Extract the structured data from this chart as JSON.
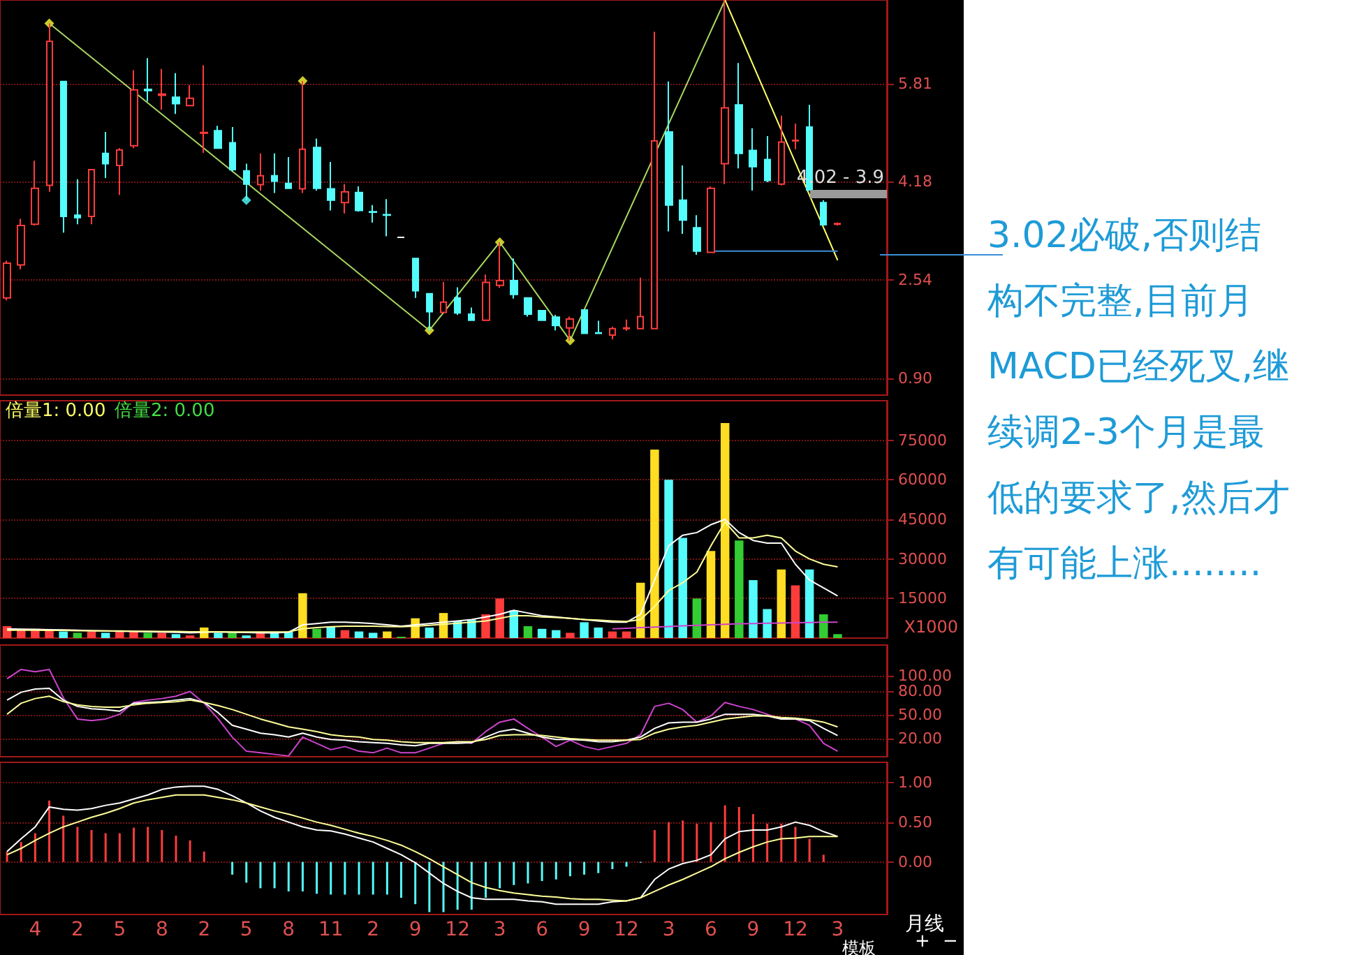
{
  "chart_data": [
    {
      "type": "candlestick",
      "categories": [
        null,
        null,
        "4",
        null,
        null,
        "2",
        null,
        null,
        "5",
        null,
        null,
        "8",
        null,
        null,
        "2",
        null,
        null,
        "5",
        null,
        null,
        "8",
        null,
        null,
        "11",
        null,
        null,
        "2",
        null,
        null,
        "9",
        null,
        null,
        "12",
        null,
        null,
        "3",
        null,
        null,
        "6",
        null,
        null,
        "9",
        null,
        null,
        "12",
        null,
        null,
        "3",
        null,
        null,
        "6",
        null,
        null,
        "9",
        null,
        null,
        "12",
        null,
        null,
        "3"
      ],
      "ohlc": [
        [
          2.24,
          2.86,
          2.2,
          2.82
        ],
        [
          2.79,
          3.56,
          2.72,
          3.45
        ],
        [
          3.47,
          4.53,
          3.45,
          4.07
        ],
        [
          4.12,
          6.82,
          4.01,
          6.52
        ],
        [
          5.85,
          5.85,
          3.33,
          3.6
        ],
        [
          3.62,
          4.22,
          3.47,
          3.58
        ],
        [
          3.6,
          4.38,
          3.47,
          4.38
        ],
        [
          4.65,
          5.01,
          4.24,
          4.48
        ],
        [
          4.45,
          4.74,
          3.96,
          4.71
        ],
        [
          4.78,
          6.04,
          4.74,
          5.71
        ],
        [
          5.72,
          6.24,
          5.52,
          5.7
        ],
        [
          5.62,
          6.06,
          5.38,
          5.64
        ],
        [
          5.59,
          5.99,
          5.31,
          5.48
        ],
        [
          5.45,
          5.79,
          5.45,
          5.57
        ],
        [
          4.99,
          6.12,
          4.66,
          5.0
        ],
        [
          5.03,
          5.11,
          4.74,
          4.74
        ],
        [
          4.83,
          5.09,
          4.35,
          4.38
        ],
        [
          4.36,
          4.48,
          3.87,
          4.14
        ],
        [
          4.13,
          4.65,
          4.03,
          4.28
        ],
        [
          4.28,
          4.65,
          3.99,
          4.19
        ],
        [
          4.15,
          4.59,
          4.06,
          4.07
        ],
        [
          4.06,
          5.86,
          3.99,
          4.72
        ],
        [
          4.75,
          4.9,
          4.03,
          4.07
        ],
        [
          4.06,
          4.51,
          3.7,
          3.87
        ],
        [
          3.83,
          4.14,
          3.65,
          4.01
        ],
        [
          4.0,
          4.1,
          3.68,
          3.7
        ],
        [
          3.68,
          3.79,
          3.5,
          3.67
        ],
        [
          3.63,
          3.89,
          3.27,
          3.62
        ],
        [
          3.25,
          3.25,
          3.25,
          3.25
        ],
        [
          2.9,
          2.9,
          2.24,
          2.36
        ],
        [
          2.31,
          2.31,
          1.7,
          2.01
        ],
        [
          2.0,
          2.51,
          2.0,
          2.17
        ],
        [
          2.24,
          2.42,
          1.96,
          1.99
        ],
        [
          1.97,
          2.08,
          1.86,
          1.87
        ],
        [
          1.87,
          2.63,
          1.87,
          2.5
        ],
        [
          2.45,
          3.17,
          2.41,
          2.53
        ],
        [
          2.53,
          2.9,
          2.23,
          2.3
        ],
        [
          2.24,
          2.24,
          1.93,
          1.97
        ],
        [
          2.03,
          2.03,
          1.86,
          1.87
        ],
        [
          1.92,
          1.96,
          1.7,
          1.78
        ],
        [
          1.74,
          1.93,
          1.53,
          1.89
        ],
        [
          2.04,
          2.04,
          1.65,
          1.65
        ],
        [
          1.66,
          1.86,
          1.65,
          1.65
        ],
        [
          1.62,
          1.76,
          1.55,
          1.73
        ],
        [
          1.73,
          1.88,
          1.69,
          1.74
        ],
        [
          1.73,
          2.58,
          1.73,
          1.93
        ],
        [
          1.73,
          6.68,
          1.73,
          4.86
        ],
        [
          5.01,
          5.85,
          3.35,
          3.79
        ],
        [
          3.87,
          4.45,
          3.31,
          3.54
        ],
        [
          3.41,
          3.62,
          2.96,
          3.02
        ],
        [
          3.0,
          4.1,
          3.0,
          4.07
        ],
        [
          4.48,
          7.21,
          4.14,
          5.41
        ],
        [
          5.46,
          6.16,
          4.4,
          4.65
        ],
        [
          4.7,
          5.07,
          4.03,
          4.43
        ],
        [
          4.55,
          4.94,
          4.17,
          4.2
        ],
        [
          4.14,
          5.28,
          4.12,
          4.84
        ],
        [
          4.86,
          5.15,
          4.72,
          4.87
        ],
        [
          5.09,
          5.46,
          4.04,
          4.04
        ],
        [
          3.83,
          3.87,
          3.46,
          3.46
        ],
        [
          3.47,
          3.5,
          3.45,
          3.48
        ]
      ],
      "colors": [
        "#ff3c3c",
        "#ff3c3c",
        "#ff3c3c",
        "#ff3c3c",
        "#54fcfc",
        "#54fcfc",
        "#ff3c3c",
        "#54fcfc",
        "#ff3c3c",
        "#ff3c3c",
        "#54fcfc",
        "#ff3c3c",
        "#54fcfc",
        "#ff3c3c",
        "#ff3c3c",
        "#54fcfc",
        "#54fcfc",
        "#54fcfc",
        "#ff3c3c",
        "#54fcfc",
        "#54fcfc",
        "#ff3c3c",
        "#54fcfc",
        "#54fcfc",
        "#ff3c3c",
        "#54fcfc",
        "#54fcfc",
        "#54fcfc",
        "#ffffff",
        "#54fcfc",
        "#54fcfc",
        "#ff3c3c",
        "#54fcfc",
        "#54fcfc",
        "#ff3c3c",
        "#ff3c3c",
        "#54fcfc",
        "#54fcfc",
        "#54fcfc",
        "#54fcfc",
        "#ff3c3c",
        "#54fcfc",
        "#54fcfc",
        "#ff3c3c",
        "#ff3c3c",
        "#ff3c3c",
        "#ff3c3c",
        "#54fcfc",
        "#54fcfc",
        "#54fcfc",
        "#ff3c3c",
        "#ff3c3c",
        "#54fcfc",
        "#54fcfc",
        "#54fcfc",
        "#ff3c3c",
        "#ff3c3c",
        "#54fcfc",
        "#54fcfc",
        "#ff3c3c"
      ],
      "series": [
        {
          "type": "line",
          "color": "#a8d860",
          "values": [
            null,
            null,
            null,
            6.82,
            null,
            null,
            null,
            null,
            null,
            null,
            null,
            null,
            null,
            null,
            null,
            null,
            null,
            null,
            null,
            null,
            null,
            null,
            null,
            null,
            null,
            null,
            null,
            null,
            null,
            null,
            1.7,
            null,
            null,
            null,
            null,
            3.17,
            null,
            null,
            null,
            null,
            1.53,
            null,
            null,
            null,
            null,
            null,
            null,
            null,
            null,
            null,
            null,
            7.21,
            null,
            null,
            null,
            null,
            null,
            null,
            null,
            null
          ]
        },
        {
          "type": "line",
          "color": "#ffff66",
          "values": [
            null,
            null,
            null,
            null,
            null,
            null,
            null,
            null,
            null,
            null,
            null,
            null,
            null,
            null,
            null,
            null,
            null,
            null,
            null,
            null,
            null,
            null,
            null,
            null,
            null,
            null,
            null,
            null,
            null,
            null,
            null,
            null,
            null,
            null,
            null,
            null,
            null,
            null,
            null,
            null,
            null,
            null,
            null,
            null,
            null,
            null,
            null,
            null,
            null,
            null,
            null,
            7.21,
            null,
            null,
            null,
            null,
            null,
            null,
            null,
            2.87
          ]
        },
        {
          "type": "line",
          "color": "#3d8fd9",
          "values": [
            null,
            null,
            null,
            null,
            null,
            null,
            null,
            null,
            null,
            null,
            null,
            null,
            null,
            null,
            null,
            null,
            null,
            null,
            null,
            null,
            null,
            null,
            null,
            null,
            null,
            null,
            null,
            null,
            null,
            null,
            null,
            null,
            null,
            null,
            null,
            null,
            null,
            null,
            null,
            null,
            null,
            null,
            null,
            null,
            null,
            null,
            null,
            null,
            null,
            null,
            3.02,
            3.02,
            3.02,
            3.02,
            3.02,
            3.02,
            3.02,
            3.02,
            3.02,
            3.02
          ]
        },
        {
          "type": "scatter",
          "color": "#ffff33",
          "marker": "diamond",
          "values": [
            null,
            null,
            null,
            6.82,
            null,
            null,
            null,
            null,
            null,
            null,
            null,
            null,
            null,
            null,
            null,
            null,
            null,
            null,
            null,
            null,
            null,
            5.86,
            null,
            null,
            null,
            null,
            null,
            null,
            null,
            null,
            1.7,
            null,
            null,
            null,
            null,
            3.17,
            null,
            null,
            null,
            null,
            1.53,
            null,
            null,
            null,
            null,
            null,
            null,
            null,
            null,
            null,
            null,
            null,
            null,
            null,
            null,
            null,
            null,
            null,
            null,
            null
          ]
        },
        {
          "type": "scatter",
          "color": "#54fcfc",
          "marker": "diamond",
          "values": [
            null,
            null,
            null,
            null,
            null,
            null,
            null,
            null,
            null,
            null,
            null,
            null,
            null,
            null,
            null,
            null,
            null,
            3.87,
            null,
            null,
            null,
            null,
            null,
            null,
            null,
            null,
            null,
            null,
            null,
            null,
            null,
            null,
            null,
            null,
            null,
            null,
            null,
            null,
            null,
            null,
            null,
            null,
            null,
            null,
            null,
            null,
            null,
            null,
            null,
            null,
            null,
            null,
            null,
            null,
            null,
            null,
            null,
            null,
            null,
            null
          ]
        }
      ],
      "ylim": [
        0.62,
        7.21
      ],
      "yticks": [
        {
          "value": 0.9,
          "label": "0.90"
        },
        2.54,
        4.18,
        5.81
      ],
      "grid": "y",
      "tick_labels": "y",
      "annotations": [
        "4.02 - 3.9",
        "3.02必破,否则结构不完整,目前月MACD已经死叉,继续调2-3个月是最低的要求了,然后才有可能上涨........"
      ]
    },
    {
      "type": "bar",
      "categories": [
        null,
        null,
        "4",
        null,
        null,
        "2",
        null,
        null,
        "5",
        null,
        null,
        "8",
        null,
        null,
        "2",
        null,
        null,
        "5",
        null,
        null,
        "8",
        null,
        null,
        "11",
        null,
        null,
        "2",
        null,
        null,
        "9",
        null,
        null,
        "12",
        null,
        null,
        "3",
        null,
        null,
        "6",
        null,
        null,
        "9",
        null,
        null,
        "12",
        null,
        null,
        "3",
        null,
        null,
        "6",
        null,
        null,
        "9",
        null,
        null,
        "12",
        null,
        null,
        "3"
      ],
      "values": [
        4500,
        3500,
        3500,
        3000,
        2500,
        2000,
        2500,
        2000,
        2500,
        2500,
        2000,
        2000,
        1500,
        1000,
        4000,
        2000,
        2000,
        1000,
        2000,
        2000,
        2500,
        17000,
        3500,
        4500,
        3000,
        2500,
        2000,
        2500,
        500,
        7500,
        4000,
        9500,
        6500,
        7000,
        9000,
        15000,
        10500,
        4500,
        3500,
        3000,
        2000,
        6000,
        4000,
        2500,
        2500,
        21000,
        71500,
        60000,
        38000,
        15000,
        33000,
        81500,
        37000,
        22000,
        11000,
        26000,
        20000,
        26000,
        9000,
        1500
      ],
      "colors": [
        "#ff3c3c",
        "#ff3c3c",
        "#ff3c3c",
        "#ff3c3c",
        "#54fcfc",
        "#33cc33",
        "#ff3c3c",
        "#54fcfc",
        "#ff3c3c",
        "#ff3c3c",
        "#33cc33",
        "#ff3c3c",
        "#54fcfc",
        "#ff3c3c",
        "#ffdd22",
        "#54fcfc",
        "#33cc33",
        "#54fcfc",
        "#ff3c3c",
        "#54fcfc",
        "#54fcfc",
        "#ffdd22",
        "#33cc33",
        "#54fcfc",
        "#ff3c3c",
        "#54fcfc",
        "#54fcfc",
        "#ffdd22",
        "#33cc33",
        "#ffdd22",
        "#54fcfc",
        "#ffdd22",
        "#54fcfc",
        "#54fcfc",
        "#ff3c3c",
        "#ff3c3c",
        "#54fcfc",
        "#33cc33",
        "#54fcfc",
        "#54fcfc",
        "#ff3c3c",
        "#54fcfc",
        "#54fcfc",
        "#ff3c3c",
        "#ff3c3c",
        "#ffdd22",
        "#ffdd22",
        "#54fcfc",
        "#54fcfc",
        "#33cc33",
        "#ffdd22",
        "#ffdd22",
        "#33cc33",
        "#54fcfc",
        "#54fcfc",
        "#ffdd22",
        "#ff3c3c",
        "#54fcfc",
        "#33cc33",
        "#33cc33"
      ],
      "series": [
        {
          "type": "line",
          "color": "#ffffff",
          "values": [
            3500,
            3400,
            3300,
            3200,
            3100,
            3000,
            2800,
            2700,
            2600,
            2500,
            2400,
            2300,
            2200,
            2000,
            2200,
            2300,
            2200,
            2100,
            2000,
            2000,
            2200,
            5000,
            5500,
            6000,
            6000,
            5800,
            5500,
            5000,
            4500,
            5000,
            5500,
            6000,
            6500,
            7000,
            8000,
            9000,
            10500,
            9500,
            8500,
            8000,
            7500,
            7000,
            6500,
            6000,
            6000,
            9000,
            22000,
            35000,
            39000,
            40000,
            43000,
            45000,
            40000,
            37000,
            36000,
            36000,
            28000,
            22000,
            19000,
            16000
          ]
        },
        {
          "type": "line",
          "color": "#ffff99",
          "values": [
            3000,
            3000,
            3000,
            2900,
            2900,
            2800,
            2800,
            2700,
            2700,
            2600,
            2600,
            2500,
            2500,
            2400,
            2400,
            2400,
            2300,
            2300,
            2300,
            2300,
            2400,
            3500,
            4000,
            4300,
            4500,
            4500,
            4500,
            4400,
            4300,
            4500,
            4800,
            5200,
            5600,
            6000,
            6500,
            7500,
            8500,
            8500,
            8000,
            7800,
            7500,
            7000,
            6800,
            6500,
            6300,
            7000,
            12000,
            18000,
            21000,
            25000,
            35000,
            44000,
            38000,
            38000,
            39000,
            38000,
            33000,
            30000,
            28000,
            27000
          ]
        },
        {
          "type": "line",
          "color": "#cc44cc",
          "values": [
            null,
            null,
            null,
            null,
            null,
            null,
            null,
            null,
            null,
            null,
            null,
            null,
            null,
            null,
            null,
            null,
            null,
            null,
            null,
            null,
            null,
            null,
            null,
            null,
            null,
            null,
            null,
            null,
            null,
            null,
            null,
            null,
            null,
            null,
            null,
            null,
            null,
            null,
            null,
            null,
            null,
            null,
            null,
            3500,
            3700,
            4000,
            4200,
            4400,
            4600,
            4800,
            5000,
            5200,
            5400,
            5500,
            5600,
            5700,
            5800,
            5900,
            6000,
            6000
          ]
        }
      ],
      "ylim": [
        0,
        90000
      ],
      "yticks": [
        15000,
        30000,
        45000,
        60000,
        75000
      ],
      "ylabel": "X1000",
      "grid": "y",
      "tick_labels": "y",
      "annotations": [
        "倍量1: 0.00",
        "倍量2: 0.00"
      ]
    },
    {
      "type": "line",
      "categories": [
        null,
        null,
        "4",
        null,
        null,
        "2",
        null,
        null,
        "5",
        null,
        null,
        "8",
        null,
        null,
        "2",
        null,
        null,
        "5",
        null,
        null,
        "8",
        null,
        null,
        "11",
        null,
        null,
        "2",
        null,
        null,
        "9",
        null,
        null,
        "12",
        null,
        null,
        "3",
        null,
        null,
        "6",
        null,
        null,
        "9",
        null,
        null,
        "12",
        null,
        null,
        "3",
        null,
        null,
        "6",
        null,
        null,
        "9",
        null,
        null,
        "12",
        null,
        null,
        "3"
      ],
      "series": [
        {
          "color": "#cc44cc",
          "values": [
            96,
            108,
            105,
            108,
            72,
            45,
            43,
            45,
            51,
            66,
            69,
            71,
            74,
            80,
            65,
            45,
            22,
            4,
            2,
            0,
            -2,
            22,
            14,
            6,
            10,
            4,
            2,
            8,
            2,
            2,
            8,
            14,
            16,
            14,
            29,
            41,
            45,
            33,
            22,
            10,
            18,
            10,
            6,
            10,
            14,
            25,
            61,
            65,
            57,
            41,
            49,
            66,
            61,
            57,
            51,
            45,
            45,
            37,
            14,
            4
          ]
        },
        {
          "color": "#ffffff",
          "values": [
            69,
            79,
            83,
            84,
            69,
            61,
            58,
            57,
            55,
            65,
            66,
            67,
            69,
            71,
            66,
            53,
            37,
            32,
            27,
            25,
            22,
            27,
            22,
            19,
            18,
            16,
            15,
            14,
            12,
            11,
            14,
            14,
            14,
            15,
            22,
            29,
            32,
            27,
            22,
            19,
            19,
            18,
            16,
            16,
            18,
            22,
            33,
            40,
            41,
            41,
            45,
            51,
            51,
            51,
            49,
            45,
            45,
            43,
            33,
            24
          ]
        },
        {
          "color": "#ffff99",
          "values": [
            51,
            65,
            71,
            74,
            67,
            63,
            61,
            60,
            60,
            63,
            65,
            66,
            67,
            69,
            66,
            62,
            57,
            51,
            45,
            40,
            35,
            32,
            29,
            25,
            23,
            22,
            19,
            18,
            16,
            15,
            15,
            15,
            16,
            16,
            19,
            24,
            25,
            25,
            24,
            22,
            20,
            19,
            18,
            18,
            18,
            19,
            27,
            32,
            35,
            37,
            41,
            45,
            47,
            49,
            49,
            47,
            46,
            44,
            41,
            35
          ]
        }
      ],
      "ylim": [
        -3,
        139
      ],
      "yticks": [
        {
          "value": 20,
          "label": "20.00"
        },
        {
          "value": 50,
          "label": "50.00"
        },
        {
          "value": 80,
          "label": "80.00"
        },
        {
          "value": 100,
          "label": "100.00"
        }
      ],
      "grid": "y",
      "tick_labels": "y"
    },
    {
      "type": "bar",
      "categories": [
        null,
        null,
        "4",
        null,
        null,
        "2",
        null,
        null,
        "5",
        null,
        null,
        "8",
        null,
        null,
        "2",
        null,
        null,
        "5",
        null,
        null,
        "8",
        null,
        null,
        "11",
        null,
        null,
        "2",
        null,
        null,
        "9",
        null,
        null,
        "12",
        null,
        null,
        "3",
        null,
        null,
        "6",
        null,
        null,
        "9",
        null,
        null,
        "12",
        null,
        null,
        "3",
        null,
        null,
        "6",
        null,
        null,
        "9",
        null,
        null,
        "12",
        null,
        null,
        "3"
      ],
      "values": [
        0.13,
        0.25,
        0.36,
        0.77,
        0.58,
        0.44,
        0.4,
        0.36,
        0.36,
        0.43,
        0.44,
        0.4,
        0.33,
        0.27,
        0.13,
        0,
        -0.16,
        -0.26,
        -0.33,
        -0.33,
        -0.37,
        -0.37,
        -0.4,
        -0.41,
        -0.41,
        -0.41,
        -0.41,
        -0.41,
        -0.45,
        -0.53,
        -0.63,
        -0.63,
        -0.6,
        -0.6,
        -0.45,
        -0.33,
        -0.29,
        -0.27,
        -0.24,
        -0.22,
        -0.18,
        -0.16,
        -0.14,
        -0.09,
        -0.06,
        -0.01,
        0.4,
        0.5,
        0.52,
        0.48,
        0.5,
        0.71,
        0.69,
        0.6,
        0.48,
        0.48,
        0.44,
        0.29,
        0.09,
        0
      ],
      "colors": [
        "#ff3c3c",
        "#ff3c3c",
        "#ff3c3c",
        "#ff3c3c",
        "#ff3c3c",
        "#ff3c3c",
        "#ff3c3c",
        "#ff3c3c",
        "#ff3c3c",
        "#ff3c3c",
        "#ff3c3c",
        "#ff3c3c",
        "#ff3c3c",
        "#ff3c3c",
        "#ff3c3c",
        "#ff3c3c",
        "#54fcfc",
        "#54fcfc",
        "#54fcfc",
        "#54fcfc",
        "#54fcfc",
        "#54fcfc",
        "#54fcfc",
        "#54fcfc",
        "#54fcfc",
        "#54fcfc",
        "#54fcfc",
        "#54fcfc",
        "#54fcfc",
        "#54fcfc",
        "#54fcfc",
        "#54fcfc",
        "#54fcfc",
        "#54fcfc",
        "#54fcfc",
        "#54fcfc",
        "#54fcfc",
        "#54fcfc",
        "#54fcfc",
        "#54fcfc",
        "#54fcfc",
        "#54fcfc",
        "#54fcfc",
        "#54fcfc",
        "#54fcfc",
        "#54fcfc",
        "#ff3c3c",
        "#ff3c3c",
        "#ff3c3c",
        "#ff3c3c",
        "#ff3c3c",
        "#ff3c3c",
        "#ff3c3c",
        "#ff3c3c",
        "#ff3c3c",
        "#ff3c3c",
        "#ff3c3c",
        "#ff3c3c",
        "#ff3c3c",
        "#ff3c3c"
      ],
      "series": [
        {
          "type": "line",
          "color": "#ffffff",
          "values": [
            0.13,
            0.29,
            0.44,
            0.69,
            0.66,
            0.65,
            0.67,
            0.71,
            0.74,
            0.79,
            0.84,
            0.91,
            0.94,
            0.95,
            0.95,
            0.91,
            0.83,
            0.74,
            0.64,
            0.56,
            0.5,
            0.44,
            0.4,
            0.39,
            0.35,
            0.3,
            0.25,
            0.17,
            0.09,
            -0.01,
            -0.14,
            -0.27,
            -0.37,
            -0.45,
            -0.47,
            -0.47,
            -0.47,
            -0.49,
            -0.5,
            -0.53,
            -0.53,
            -0.53,
            -0.53,
            -0.5,
            -0.49,
            -0.45,
            -0.22,
            -0.09,
            -0.02,
            0.02,
            0.09,
            0.29,
            0.38,
            0.4,
            0.4,
            0.44,
            0.5,
            0.46,
            0.38,
            0.32
          ]
        },
        {
          "type": "line",
          "color": "#ffff99",
          "values": [
            0.09,
            0.17,
            0.27,
            0.36,
            0.44,
            0.5,
            0.56,
            0.61,
            0.67,
            0.74,
            0.78,
            0.81,
            0.84,
            0.84,
            0.84,
            0.81,
            0.78,
            0.74,
            0.69,
            0.64,
            0.6,
            0.55,
            0.5,
            0.46,
            0.41,
            0.36,
            0.32,
            0.27,
            0.21,
            0.13,
            0.04,
            -0.06,
            -0.16,
            -0.26,
            -0.32,
            -0.36,
            -0.39,
            -0.41,
            -0.43,
            -0.44,
            -0.46,
            -0.47,
            -0.47,
            -0.48,
            -0.49,
            -0.45,
            -0.37,
            -0.29,
            -0.22,
            -0.14,
            -0.06,
            0.04,
            0.12,
            0.19,
            0.25,
            0.29,
            0.3,
            0.32,
            0.32,
            0.32
          ]
        }
      ],
      "ylim": [
        -0.66,
        1.25
      ],
      "yticks": [
        {
          "value": 0,
          "label": "0.00"
        },
        {
          "value": 0.5,
          "label": "0.50"
        },
        {
          "value": 1,
          "label": "1.00"
        }
      ],
      "grid": "y",
      "annotations": [
        "月线",
        "模板",
        "+",
        "−"
      ]
    }
  ]
}
